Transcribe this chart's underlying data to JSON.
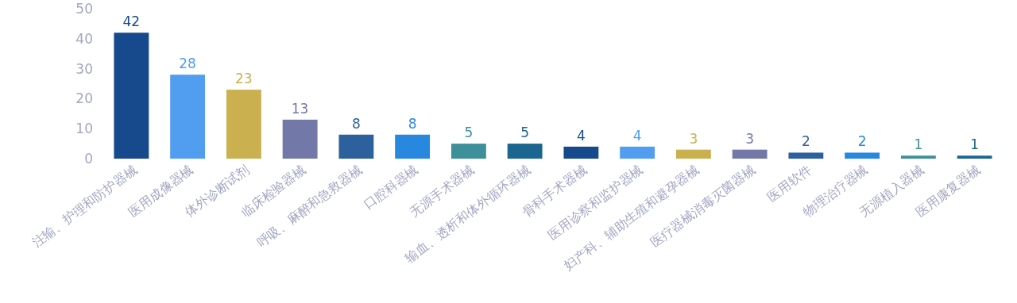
{
  "chart_data": {
    "type": "bar",
    "categories": [
      "注输、护理和防护器械",
      "医用成像器械",
      "体外诊断试剂",
      "临床检验器械",
      "呼吸、麻醉和急救器械",
      "口腔科器械",
      "无源手术器械",
      "输血、透析和体外循环器械",
      "骨科手术器械",
      "医用诊察和监护器械",
      "妇产科、辅助生殖和避孕器械",
      "医疗器械消毒灭菌器械",
      "医用软件",
      "物理治疗器械",
      "无源植入器械",
      "医用康复器械"
    ],
    "values": [
      42,
      28,
      23,
      13,
      8,
      8,
      5,
      5,
      4,
      4,
      3,
      3,
      2,
      2,
      1,
      1
    ],
    "colors": [
      "#174a8c",
      "#519df0",
      "#cbb04f",
      "#7279a8",
      "#2d619e",
      "#2888e0",
      "#3d8f9a",
      "#1a6690",
      "#174a8c",
      "#519df0",
      "#cbb04f",
      "#7279a8",
      "#2d619e",
      "#2888e0",
      "#3d8f9a",
      "#1a6690"
    ],
    "ylim": [
      0,
      50
    ],
    "yticks": [
      0,
      10,
      20,
      30,
      40,
      50
    ],
    "data_labels": true
  }
}
